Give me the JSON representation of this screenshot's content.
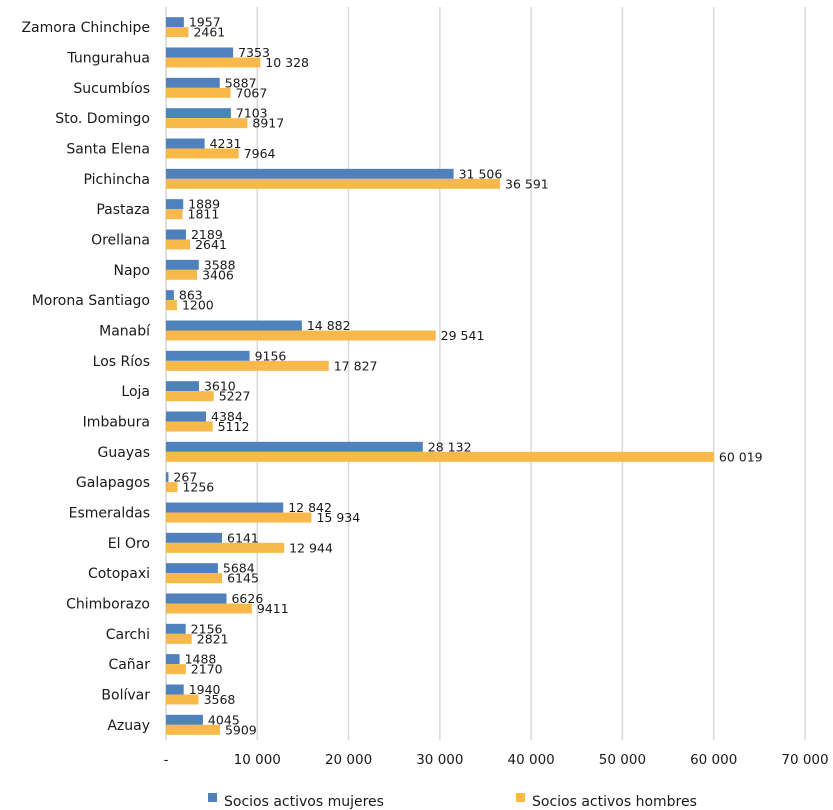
{
  "chart_data": {
    "type": "bar",
    "orientation": "horizontal",
    "categories": [
      "Zamora Chinchipe",
      "Tungurahua",
      "Sucumbíos",
      "Sto. Domingo",
      "Santa Elena",
      "Pichincha",
      "Pastaza",
      "Orellana",
      "Napo",
      "Morona Santiago",
      "Manabí",
      "Los Ríos",
      "Loja",
      "Imbabura",
      "Guayas",
      "Galapagos",
      "Esmeraldas",
      "El Oro",
      "Cotopaxi",
      "Chimborazo",
      "Carchi",
      "Cañar",
      "Bolívar",
      "Azuay"
    ],
    "series": [
      {
        "name": "Socios activos mujeres",
        "color": "#4f81bd",
        "values": [
          1957,
          7353,
          5887,
          7103,
          4231,
          31506,
          1889,
          2189,
          3588,
          863,
          14882,
          9156,
          3610,
          4384,
          28132,
          267,
          12842,
          6141,
          5684,
          6626,
          2156,
          1488,
          1940,
          4045
        ],
        "labels": [
          "1957",
          "7353",
          "5887",
          "7103",
          "4231",
          "31 506",
          "1889",
          "2189",
          "3588",
          "863",
          "14 882",
          "9156",
          "3610",
          "4384",
          "28 132",
          "267",
          "12 842",
          "6141",
          "5684",
          "6626",
          "2156",
          "1488",
          "1940",
          "4045"
        ]
      },
      {
        "name": "Socios activos hombres",
        "color": "#f9b94a",
        "values": [
          2461,
          10328,
          7067,
          8917,
          7964,
          36591,
          1811,
          2641,
          3406,
          1200,
          29541,
          17827,
          5227,
          5112,
          60019,
          1256,
          15934,
          12944,
          6145,
          9411,
          2821,
          2170,
          3568,
          5909
        ],
        "labels": [
          "2461",
          "10 328",
          "7067",
          "8917",
          "7964",
          "36 591",
          "1811",
          "2641",
          "3406",
          "1200",
          "29 541",
          "17 827",
          "5227",
          "5112",
          "60 019",
          "1256",
          "15 934",
          "12 944",
          "6145",
          "9411",
          "2821",
          "2170",
          "3568",
          "5909"
        ]
      }
    ],
    "xlim": [
      0,
      70000
    ],
    "xticks": [
      0,
      10000,
      20000,
      30000,
      40000,
      50000,
      60000,
      70000
    ],
    "xtick_labels": [
      "-",
      "10 000",
      "20 000",
      "30 000",
      "40 000",
      "50 000",
      "60 000",
      "70 000"
    ],
    "grid": "vertical",
    "legend": "bottom"
  }
}
